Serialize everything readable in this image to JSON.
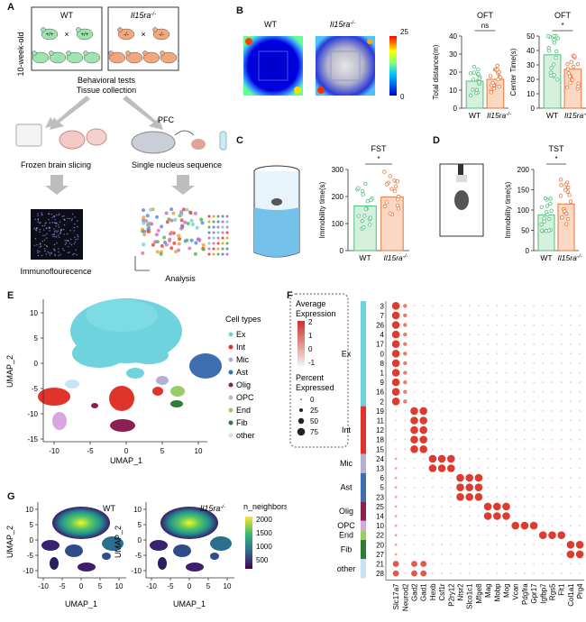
{
  "panels": {
    "a": "A",
    "b": "B",
    "c": "C",
    "d": "D",
    "e": "E",
    "f": "F",
    "g": "G"
  },
  "panelA": {
    "age": "10-week-old",
    "wt": "WT",
    "ko": "Il15ra",
    "ko_sup": "-/-",
    "cross": "×",
    "genotype_wt": "+/+",
    "genotype_ko": "-/-",
    "steps": [
      "Behavioral tests",
      "Tissue collection"
    ],
    "pfc": "PFC",
    "frozen": "Frozen brain slicing",
    "single_nucleus": "Single nucleus sequence",
    "immuno": "Immunoflourecence",
    "analysis": "Analysis"
  },
  "panelB": {
    "wt": "WT",
    "ko": "Il15ra",
    "ko_sup": "-/-",
    "scale_max": "25",
    "scale_min": "0",
    "bar_charts": [
      {
        "title": "OFT",
        "ylabel": "Total distance(m)",
        "yticks": [
          "0",
          "10",
          "20",
          "30",
          "40"
        ],
        "sig": "ns"
      },
      {
        "title": "OFT",
        "ylabel": "Center Time(s)",
        "yticks": [
          "0",
          "10",
          "20",
          "30",
          "40",
          "50"
        ],
        "sig": "*"
      }
    ]
  },
  "panelC": {
    "title": "FST",
    "ylabel": "Immobility time(s)",
    "yticks": [
      "0",
      "100",
      "200",
      "300"
    ],
    "sig": "*"
  },
  "panelD": {
    "title": "TST",
    "ylabel": "Immobility time(s)",
    "yticks": [
      "0",
      "50",
      "100",
      "150",
      "200"
    ],
    "sig": "*"
  },
  "panelE": {
    "xlabel": "UMAP_1",
    "ylabel": "UMAP_2",
    "xticks": [
      "-10",
      "-5",
      "0",
      "5",
      "10"
    ],
    "yticks": [
      "10",
      "5",
      "0",
      "-5",
      "-10",
      "-15"
    ],
    "legend_title": "Cell types",
    "cell_types": [
      {
        "name": "Ex",
        "color": "#6fd3de"
      },
      {
        "name": "Int",
        "color": "#e0332b"
      },
      {
        "name": "Mic",
        "color": "#b2b1d2"
      },
      {
        "name": "Ast",
        "color": "#3d6fb0"
      },
      {
        "name": "Olig",
        "color": "#8b1f52"
      },
      {
        "name": "OPC",
        "color": "#d9a7df"
      },
      {
        "name": "End",
        "color": "#9acd68"
      },
      {
        "name": "Fib",
        "color": "#2f7d34"
      },
      {
        "name": "other",
        "color": "#c8e4f4"
      }
    ],
    "avg_title": [
      "Average",
      "Expression"
    ],
    "avg_ticks": [
      "2",
      "1",
      "0",
      "-1"
    ],
    "pct_title": [
      "Percent",
      "Expressed"
    ],
    "pct_ticks": [
      "0",
      "25",
      "50",
      "75"
    ]
  },
  "panelF": {
    "clusters": [
      "3",
      "7",
      "26",
      "4",
      "17",
      "0",
      "8",
      "1",
      "9",
      "16",
      "2",
      "19",
      "11",
      "12",
      "18",
      "15",
      "24",
      "13",
      "6",
      "5",
      "23",
      "25",
      "14",
      "10",
      "22",
      "20",
      "27",
      "21",
      "28"
    ],
    "groups": [
      {
        "name": "Ex",
        "count": 11,
        "color": "#6fd3de"
      },
      {
        "name": "Int",
        "count": 5,
        "color": "#e0332b"
      },
      {
        "name": "Mic",
        "count": 2,
        "color": "#b2b1d2"
      },
      {
        "name": "Ast",
        "count": 3,
        "color": "#3d6fb0"
      },
      {
        "name": "Olig",
        "count": 2,
        "color": "#8b1f52"
      },
      {
        "name": "OPC",
        "count": 1,
        "color": "#d9a7df"
      },
      {
        "name": "End",
        "count": 1,
        "color": "#9acd68"
      },
      {
        "name": "Fib",
        "count": 2,
        "color": "#2f7d34"
      },
      {
        "name": "other",
        "count": 2,
        "color": "#c8e4f4"
      }
    ],
    "genes": [
      "Slc17a7",
      "Neurod2",
      "Gad2",
      "Gad1",
      "Hexb",
      "Csf1r",
      "P2ry12",
      "Ntsr2",
      "Slco1c1",
      "Mfge8",
      "Mag",
      "Mobp",
      "Mog",
      "Vcan",
      "Pdgfra",
      "Gpr17",
      "Igfbp7",
      "Rgs5",
      "Flt1",
      "Col1a1",
      "Prg4"
    ]
  },
  "panelG": {
    "wt": "WT",
    "ko": "Il15ra",
    "ko_sup": "-/-",
    "xlabel": "UMAP_1",
    "ylabel": "UMAP_2",
    "xticks": [
      "-10",
      "-5",
      "0",
      "5",
      "10"
    ],
    "yticks": [
      "10",
      "5",
      "0",
      "-5",
      "-10"
    ],
    "legend_title": "n_neighbors",
    "legend_ticks": [
      "2000",
      "1500",
      "1000",
      "500"
    ]
  },
  "common": {
    "wt": "WT",
    "ko": "Il15ra",
    "ko_sup": "-/-"
  }
}
